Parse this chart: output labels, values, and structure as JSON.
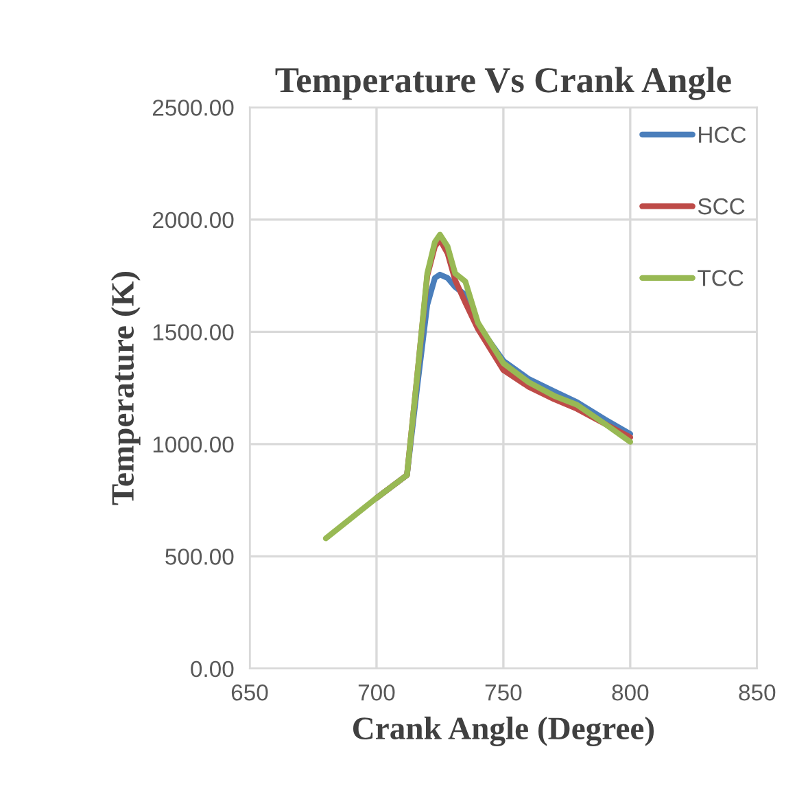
{
  "chart_data": {
    "type": "line",
    "title": "Temperature Vs Crank Angle",
    "xlabel": "Crank Angle (Degree)",
    "ylabel": "Temperature (K)",
    "xlim": [
      650,
      850
    ],
    "xticks": [
      650,
      700,
      750,
      800,
      850
    ],
    "ylim": [
      0,
      2500
    ],
    "yticks": [
      {
        "value": 0,
        "label": "0.00"
      },
      {
        "value": 500,
        "label": "500.00"
      },
      {
        "value": 1000,
        "label": "1000.00"
      },
      {
        "value": 1500,
        "label": "1500.00"
      },
      {
        "value": 2000,
        "label": "2000.00"
      },
      {
        "value": 2500,
        "label": "2500.00"
      }
    ],
    "grid": true,
    "legend": "right",
    "marker": "none",
    "line_style": "solid",
    "series": [
      {
        "name": "HCC",
        "color": "#4a7ebb",
        "x": [
          700,
          712,
          716,
          720,
          723,
          725,
          728,
          731,
          735,
          740,
          750,
          760,
          770,
          779,
          790,
          800
        ],
        "values": [
          760,
          862,
          1250,
          1620,
          1740,
          1755,
          1740,
          1700,
          1665,
          1530,
          1371,
          1290,
          1235,
          1187,
          1110,
          1045
        ]
      },
      {
        "name": "SCC",
        "color": "#be4b48",
        "x": [
          700,
          712,
          716,
          720,
          723,
          725,
          728,
          731,
          735,
          740,
          750,
          760,
          770,
          779,
          790,
          800
        ],
        "values": [
          760,
          862,
          1300,
          1750,
          1880,
          1910,
          1850,
          1730,
          1630,
          1512,
          1330,
          1255,
          1200,
          1157,
          1090,
          1030
        ]
      },
      {
        "name": "TCC",
        "color": "#98b954",
        "x": [
          680,
          690,
          700,
          712,
          716,
          720,
          723,
          725,
          728,
          731,
          735,
          740,
          750,
          760,
          770,
          779,
          790,
          800
        ],
        "values": [
          580,
          670,
          760,
          862,
          1300,
          1760,
          1900,
          1933,
          1880,
          1760,
          1724,
          1540,
          1360,
          1275,
          1215,
          1175,
          1090,
          1010
        ]
      }
    ]
  }
}
